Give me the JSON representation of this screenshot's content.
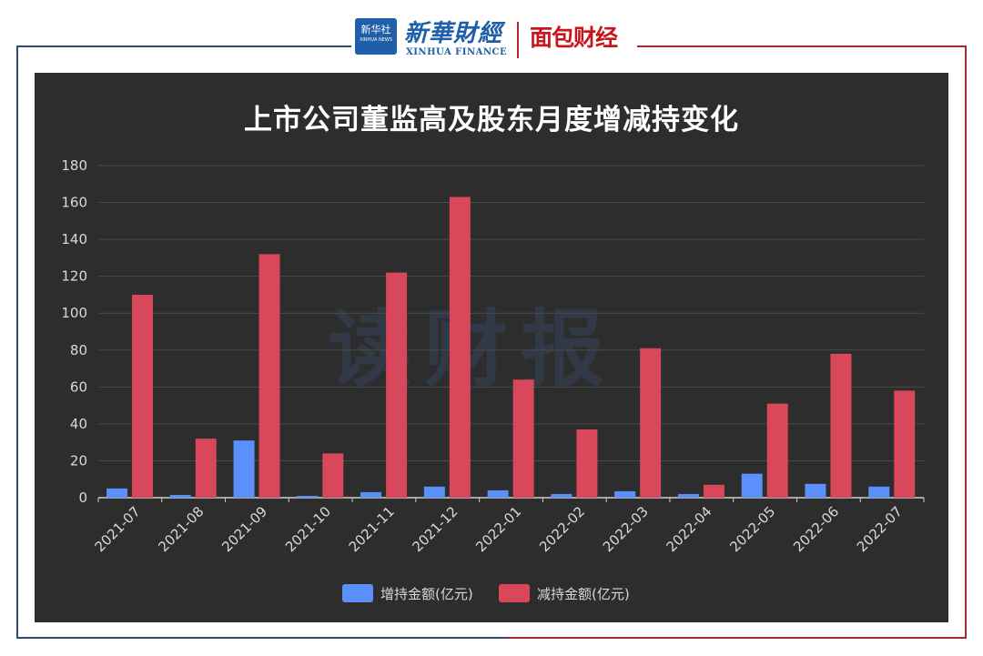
{
  "header": {
    "logo_box_text": "新华社",
    "logo_box_sub": "XINHUA NEWS",
    "logo_script": "新華財經",
    "logo_script_en": "XINHUA FINANCE",
    "logo_red": "面包财经"
  },
  "watermark": "读财报",
  "colors": {
    "background": "#2d2d2d",
    "increase": "#5b8ff9",
    "decrease": "#d9475a",
    "text": "#d9d9d9"
  },
  "chart_data": {
    "type": "bar",
    "title": "上市公司董监高及股东月度增减持变化",
    "categories": [
      "2021-07",
      "2021-08",
      "2021-09",
      "2021-10",
      "2021-11",
      "2021-12",
      "2022-01",
      "2022-02",
      "2022-03",
      "2022-04",
      "2022-05",
      "2022-06",
      "2022-07"
    ],
    "series": [
      {
        "name": "增持金额(亿元)",
        "color": "#5b8ff9",
        "values": [
          5,
          1.5,
          31,
          1,
          3,
          6,
          4,
          2,
          3.5,
          2,
          13,
          7.5,
          6
        ]
      },
      {
        "name": "减持金额(亿元)",
        "color": "#d9475a",
        "values": [
          110,
          32,
          132,
          24,
          122,
          163,
          64,
          37,
          81,
          7,
          51,
          78,
          58
        ]
      }
    ],
    "ylim": [
      0,
      180
    ],
    "yticks": [
      0,
      20,
      40,
      60,
      80,
      100,
      120,
      140,
      160,
      180
    ],
    "grid": true,
    "legend_position": "bottom"
  }
}
